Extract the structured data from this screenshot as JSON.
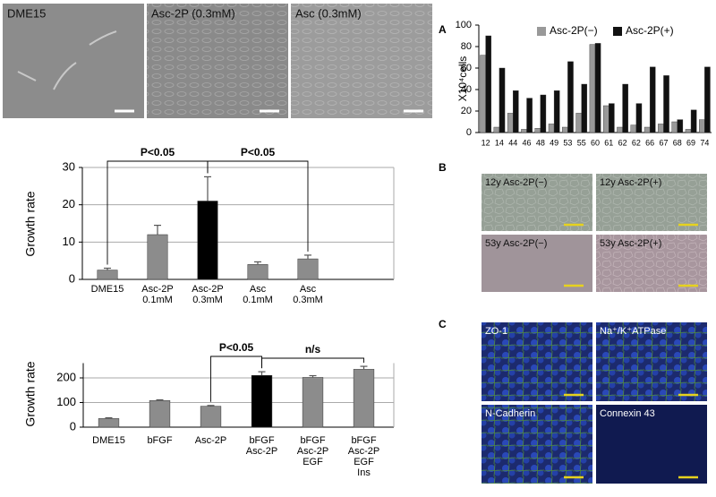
{
  "chart_data": [
    {
      "type": "bar",
      "y_label": "X10⁴cells",
      "categories": [
        "12",
        "14",
        "44",
        "46",
        "48",
        "49",
        "53",
        "55",
        "60",
        "61",
        "62",
        "62",
        "66",
        "67",
        "68",
        "69",
        "74"
      ],
      "series": [
        {
          "name": "Asc-2P(−)",
          "color": "#999999",
          "values": [
            72,
            5,
            18,
            3,
            4,
            8,
            5,
            18,
            82,
            25,
            5,
            7,
            5,
            8,
            10,
            3,
            12
          ]
        },
        {
          "name": "Asc-2P(+)",
          "color": "#111111",
          "values": [
            90,
            60,
            39,
            32,
            35,
            39,
            66,
            45,
            83,
            27,
            45,
            27,
            61,
            53,
            12,
            21,
            61
          ]
        }
      ],
      "ylim": [
        0,
        100
      ],
      "yticks": [
        0,
        20,
        40,
        60,
        80,
        100
      ],
      "grid": false,
      "legend": "top"
    },
    {
      "type": "bar",
      "y_label": "Growth rate",
      "categories": [
        [
          "DME15"
        ],
        [
          "Asc-2P",
          "0.1mM"
        ],
        [
          "Asc-2P",
          "0.3mM"
        ],
        [
          "Asc",
          "0.1mM"
        ],
        [
          "Asc",
          "0.3mM"
        ]
      ],
      "values": [
        2.5,
        12,
        21,
        4,
        5.5
      ],
      "errors": [
        0.5,
        2.5,
        6.5,
        0.7,
        1
      ],
      "colors": [
        "#8c8c8c",
        "#8c8c8c",
        "#000000",
        "#8c8c8c",
        "#8c8c8c"
      ],
      "ylim": [
        0,
        30
      ],
      "yticks": [
        0,
        10,
        20,
        30
      ],
      "grid": true,
      "annotations": [
        "P<0.05",
        "P<0.05"
      ]
    },
    {
      "type": "bar",
      "y_label": "Growth rate",
      "categories": [
        [
          "DME15"
        ],
        [
          "bFGF"
        ],
        [
          "Asc-2P"
        ],
        [
          "bFGF",
          "Asc-2P"
        ],
        [
          "bFGF",
          "Asc-2P",
          "EGF"
        ],
        [
          "bFGF",
          "Asc-2P",
          "EGF",
          "Ins"
        ]
      ],
      "values": [
        35,
        108,
        85,
        210,
        202,
        235
      ],
      "errors": [
        3,
        3,
        3,
        15,
        7,
        12
      ],
      "colors": [
        "#8c8c8c",
        "#8c8c8c",
        "#8c8c8c",
        "#000000",
        "#8c8c8c",
        "#8c8c8c"
      ],
      "ylim": [
        0,
        260
      ],
      "yticks": [
        0,
        100,
        200
      ],
      "grid": true,
      "annotations": [
        "P<0.05",
        "n/s"
      ]
    }
  ],
  "images": {
    "top": [
      "DME15",
      "Asc-2P (0.3mM)",
      "Asc (0.3mM)"
    ],
    "panel_b": [
      "12y Asc-2P(−)",
      "12y Asc-2P(+)",
      "53y Asc-2P(−)",
      "53y Asc-2P(+)"
    ],
    "panel_c": [
      "ZO-1",
      "Na⁺/K⁺ATPase",
      "N-Cadherin",
      "Connexin 43"
    ],
    "panel_labels": [
      "A",
      "B",
      "C"
    ]
  }
}
